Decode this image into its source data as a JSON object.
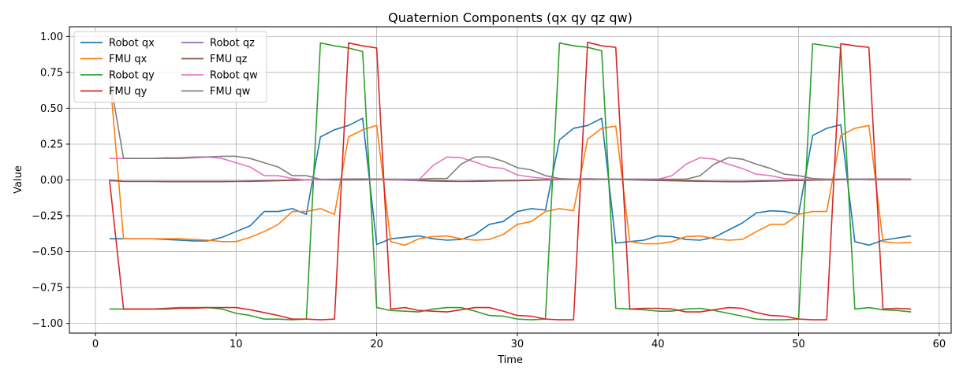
{
  "chart_data": {
    "type": "line",
    "title": "Quaternion Components (qx qy qz qw)",
    "xlabel": "Time",
    "ylabel": "Value",
    "xlim": [
      -1.85,
      60.85
    ],
    "ylim": [
      -1.068,
      1.068
    ],
    "xticks": [
      0,
      10,
      20,
      30,
      40,
      50,
      60
    ],
    "xtick_labels": [
      "0",
      "10",
      "20",
      "30",
      "40",
      "50",
      "60"
    ],
    "yticks": [
      -1.0,
      -0.75,
      -0.5,
      -0.25,
      0.0,
      0.25,
      0.5,
      0.75,
      1.0
    ],
    "ytick_labels": [
      "−1.00",
      "−0.75",
      "−0.50",
      "−0.25",
      "0.00",
      "0.25",
      "0.50",
      "0.75",
      "1.00"
    ],
    "grid": true,
    "legend_position": "upper-left",
    "legend_columns": 2,
    "x": [
      1,
      2,
      3,
      4,
      5,
      6,
      7,
      8,
      9,
      10,
      11,
      12,
      13,
      14,
      15,
      16,
      17,
      18,
      19,
      20,
      21,
      22,
      23,
      24,
      25,
      26,
      27,
      28,
      29,
      30,
      31,
      32,
      33,
      34,
      35,
      36,
      37,
      38,
      39,
      40,
      41,
      42,
      43,
      44,
      45,
      46,
      47,
      48,
      49,
      50,
      51,
      52,
      53,
      54,
      55,
      56,
      57,
      58
    ],
    "series": [
      {
        "name": "Robot qx",
        "color": "#1f77b4",
        "values": [
          -0.41,
          -0.41,
          -0.41,
          -0.41,
          -0.415,
          -0.42,
          -0.425,
          -0.425,
          -0.4,
          -0.36,
          -0.32,
          -0.22,
          -0.22,
          -0.2,
          -0.24,
          0.3,
          0.35,
          0.38,
          0.43,
          -0.45,
          -0.41,
          -0.4,
          -0.39,
          -0.41,
          -0.42,
          -0.415,
          -0.38,
          -0.31,
          -0.29,
          -0.22,
          -0.2,
          -0.21,
          0.28,
          0.36,
          0.38,
          0.43,
          -0.44,
          -0.43,
          -0.42,
          -0.39,
          -0.395,
          -0.415,
          -0.42,
          -0.4,
          -0.35,
          -0.3,
          -0.23,
          -0.215,
          -0.22,
          -0.24,
          0.31,
          0.36,
          0.385,
          -0.43,
          -0.455,
          -0.42,
          -0.405,
          -0.39
        ]
      },
      {
        "name": "FMU qx",
        "color": "#ff7f0e",
        "values": [
          0.75,
          -0.41,
          -0.41,
          -0.41,
          -0.41,
          -0.41,
          -0.415,
          -0.42,
          -0.43,
          -0.43,
          -0.4,
          -0.36,
          -0.31,
          -0.22,
          -0.22,
          -0.2,
          -0.24,
          0.3,
          0.35,
          0.38,
          -0.43,
          -0.455,
          -0.41,
          -0.395,
          -0.39,
          -0.41,
          -0.42,
          -0.415,
          -0.38,
          -0.31,
          -0.29,
          -0.22,
          -0.2,
          -0.215,
          0.285,
          0.36,
          0.375,
          -0.43,
          -0.445,
          -0.445,
          -0.43,
          -0.395,
          -0.39,
          -0.41,
          -0.42,
          -0.415,
          -0.36,
          -0.31,
          -0.31,
          -0.24,
          -0.22,
          -0.22,
          0.31,
          0.36,
          0.38,
          -0.43,
          -0.44,
          -0.435
        ]
      },
      {
        "name": "Robot qy",
        "color": "#2ca02c",
        "values": [
          -0.9,
          -0.9,
          -0.9,
          -0.9,
          -0.895,
          -0.89,
          -0.89,
          -0.89,
          -0.9,
          -0.93,
          -0.945,
          -0.97,
          -0.97,
          -0.975,
          -0.97,
          0.955,
          0.935,
          0.92,
          0.895,
          -0.89,
          -0.91,
          -0.915,
          -0.92,
          -0.9,
          -0.89,
          -0.89,
          -0.915,
          -0.945,
          -0.95,
          -0.97,
          -0.975,
          -0.97,
          0.955,
          0.935,
          0.925,
          0.9,
          -0.895,
          -0.9,
          -0.905,
          -0.915,
          -0.915,
          -0.9,
          -0.895,
          -0.91,
          -0.93,
          -0.95,
          -0.97,
          -0.975,
          -0.975,
          -0.97,
          0.95,
          0.935,
          0.92,
          -0.9,
          -0.89,
          -0.905,
          -0.91,
          -0.92
        ]
      },
      {
        "name": "FMU qy",
        "color": "#d62728",
        "values": [
          0.0,
          -0.9,
          -0.9,
          -0.9,
          -0.9,
          -0.895,
          -0.895,
          -0.89,
          -0.89,
          -0.89,
          -0.905,
          -0.925,
          -0.945,
          -0.97,
          -0.97,
          -0.975,
          -0.97,
          0.955,
          0.935,
          0.92,
          -0.9,
          -0.89,
          -0.91,
          -0.915,
          -0.92,
          -0.905,
          -0.89,
          -0.89,
          -0.915,
          -0.945,
          -0.95,
          -0.97,
          -0.975,
          -0.975,
          0.96,
          0.935,
          0.925,
          -0.9,
          -0.895,
          -0.895,
          -0.9,
          -0.92,
          -0.92,
          -0.905,
          -0.89,
          -0.895,
          -0.925,
          -0.945,
          -0.95,
          -0.97,
          -0.975,
          -0.975,
          0.95,
          0.935,
          0.925,
          -0.9,
          -0.895,
          -0.9
        ]
      },
      {
        "name": "Robot qz",
        "color": "#9467bd",
        "values": [
          -0.005,
          -0.01,
          -0.01,
          -0.01,
          -0.01,
          -0.01,
          -0.01,
          -0.01,
          -0.01,
          -0.01,
          -0.008,
          -0.005,
          -0.003,
          0.0,
          0.002,
          0.004,
          0.005,
          0.006,
          0.006,
          0.004,
          0.001,
          -0.002,
          -0.005,
          -0.008,
          -0.01,
          -0.01,
          -0.008,
          -0.006,
          -0.005,
          -0.003,
          0.0,
          0.002,
          0.004,
          0.005,
          0.006,
          0.006,
          0.004,
          0.001,
          -0.002,
          -0.004,
          -0.006,
          -0.008,
          -0.01,
          -0.01,
          -0.01,
          -0.01,
          -0.008,
          -0.006,
          -0.004,
          -0.002,
          0.0,
          0.002,
          0.004,
          0.005,
          0.006,
          0.006,
          0.005,
          0.004
        ]
      },
      {
        "name": "FMU qz",
        "color": "#8c564b",
        "values": [
          0.0,
          -0.01,
          -0.01,
          -0.01,
          -0.012,
          -0.012,
          -0.012,
          -0.012,
          -0.012,
          -0.01,
          -0.01,
          -0.008,
          -0.005,
          -0.003,
          0.0,
          0.002,
          0.004,
          0.005,
          0.006,
          0.006,
          0.004,
          0.001,
          -0.002,
          -0.005,
          -0.008,
          -0.01,
          -0.01,
          -0.008,
          -0.006,
          -0.005,
          -0.003,
          0.0,
          0.002,
          0.004,
          0.005,
          0.006,
          0.006,
          0.004,
          0.001,
          -0.002,
          -0.004,
          -0.006,
          -0.008,
          -0.01,
          -0.012,
          -0.012,
          -0.01,
          -0.008,
          -0.006,
          -0.004,
          -0.002,
          0.0,
          0.002,
          0.004,
          0.005,
          0.006,
          0.006,
          0.005
        ]
      },
      {
        "name": "Robot qw",
        "color": "#e377c2",
        "values": [
          0.15,
          0.15,
          0.15,
          0.15,
          0.155,
          0.155,
          0.16,
          0.16,
          0.15,
          0.12,
          0.09,
          0.03,
          0.03,
          0.01,
          0.0,
          0.0,
          0.0,
          0.0,
          0.0,
          0.0,
          0.0,
          0.0,
          0.0,
          0.1,
          0.16,
          0.155,
          0.125,
          0.09,
          0.08,
          0.035,
          0.02,
          0.01,
          0.005,
          0.005,
          0.01,
          0.005,
          0.005,
          0.005,
          0.005,
          0.005,
          0.03,
          0.11,
          0.155,
          0.145,
          0.11,
          0.08,
          0.04,
          0.03,
          0.01,
          0.005,
          0.005,
          0.005,
          0.005,
          0.005,
          0.0,
          0.0,
          0.0,
          0.0
        ]
      },
      {
        "name": "FMU qw",
        "color": "#7f7f7f",
        "values": [
          0.72,
          0.15,
          0.15,
          0.15,
          0.15,
          0.15,
          0.155,
          0.16,
          0.165,
          0.165,
          0.15,
          0.12,
          0.09,
          0.03,
          0.03,
          0.005,
          0.0,
          0.0,
          0.0,
          0.005,
          0.005,
          0.005,
          0.005,
          0.01,
          0.01,
          0.11,
          0.16,
          0.16,
          0.13,
          0.085,
          0.07,
          0.03,
          0.01,
          0.005,
          0.005,
          0.005,
          0.005,
          0.005,
          0.005,
          0.005,
          0.005,
          0.005,
          0.03,
          0.11,
          0.155,
          0.145,
          0.11,
          0.08,
          0.04,
          0.03,
          0.01,
          0.005,
          0.005,
          0.005,
          0.005,
          0.005,
          0.005,
          0.005
        ]
      }
    ]
  }
}
